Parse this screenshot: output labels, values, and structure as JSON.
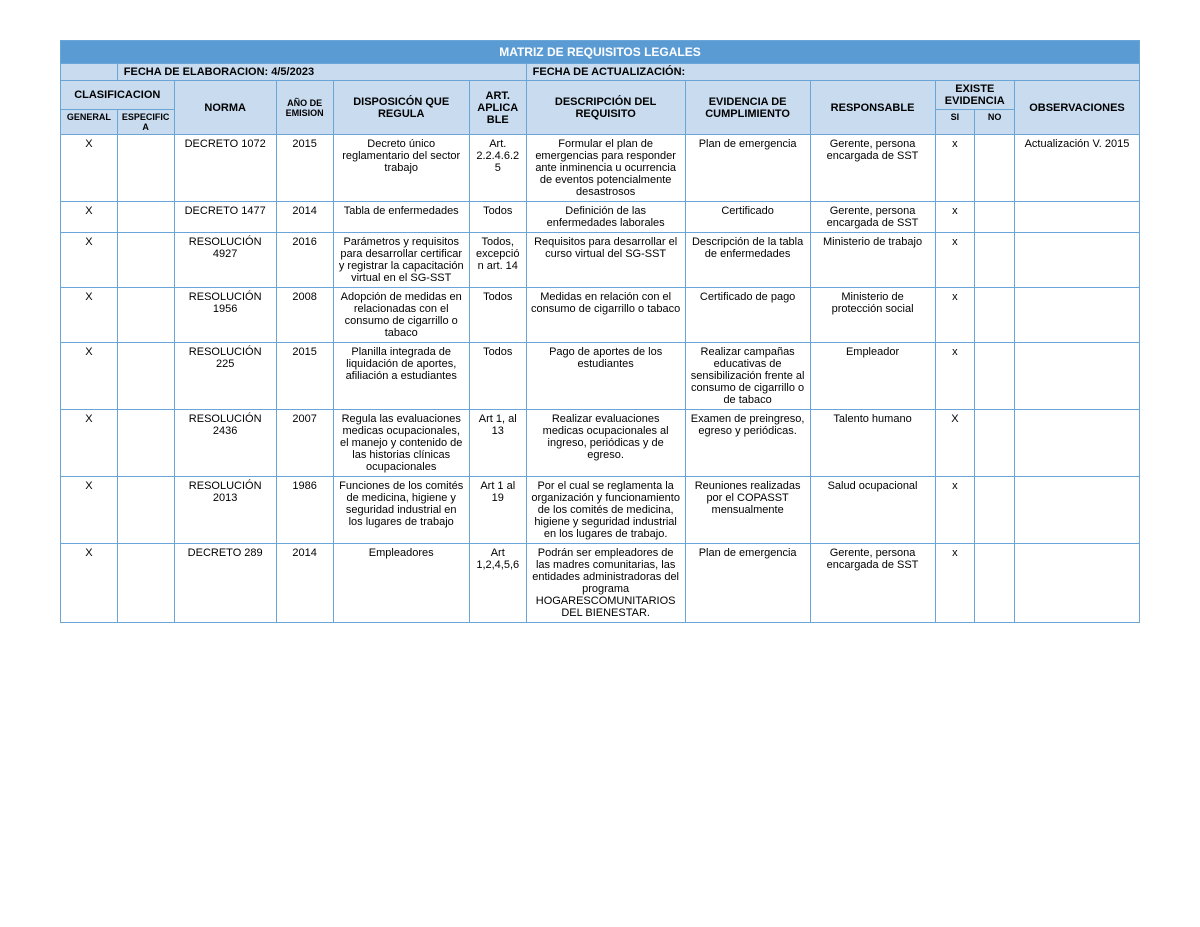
{
  "title": "MATRIZ DE REQUISITOS LEGALES",
  "fecha_elaboracion_label": "FECHA DE ELABORACION: 4/5/2023",
  "fecha_actualizacion_label": "FECHA DE ACTUALIZACIÓN:",
  "headers": {
    "clasificacion": "CLASIFICACION",
    "norma": "NORMA",
    "anio_emision": "AÑO DE EMISION",
    "disposicion": "DISPOSICÓN QUE REGULA",
    "art_aplicable": "ART. APLICABLE",
    "descripcion": "DESCRIPCIÓN DEL REQUISITO",
    "evidencia_cumplimiento": "EVIDENCIA DE CUMPLIMIENTO",
    "responsable": "RESPONSABLE",
    "existe_evidencia": "EXISTE EVIDENCIA",
    "observaciones": "OBSERVACIONES",
    "general": "GENERAL",
    "especifica": "ESPECIFICA",
    "si": "SI",
    "no": "NO"
  },
  "rows": [
    {
      "general": "X",
      "especifica": "",
      "norma": "DECRETO 1072",
      "anio": "2015",
      "disposicion": "Decreto único reglamentario del sector trabajo",
      "art": "Art. 2.2.4.6.25",
      "descripcion": "Formular el plan de emergencias para responder ante inminencia u ocurrencia de eventos potencialmente desastrosos",
      "evidencia": "Plan de emergencia",
      "responsable": "Gerente, persona encargada de SST",
      "si": "x",
      "no": "",
      "obs": "Actualización V. 2015"
    },
    {
      "general": "X",
      "especifica": "",
      "norma": "DECRETO 1477",
      "anio": "2014",
      "disposicion": "Tabla de enfermedades",
      "art": "Todos",
      "descripcion": "Definición de las enfermedades laborales",
      "evidencia": "Certificado",
      "responsable": "Gerente, persona encargada de SST",
      "si": "x",
      "no": "",
      "obs": ""
    },
    {
      "general": "X",
      "especifica": "",
      "norma": "RESOLUCIÓN 4927",
      "anio": "2016",
      "disposicion": "Parámetros y requisitos para desarrollar certificar y registrar la capacitación virtual en el SG-SST",
      "art": "Todos, excepción art. 14",
      "descripcion": "Requisitos para desarrollar el curso virtual del SG-SST",
      "evidencia": "Descripción de la tabla de enfermedades",
      "responsable": "Ministerio de trabajo",
      "si": "x",
      "no": "",
      "obs": ""
    },
    {
      "general": "X",
      "especifica": "",
      "norma": "RESOLUCIÓN 1956",
      "anio": "2008",
      "disposicion": "Adopción de medidas en relacionadas con el consumo de cigarrillo o tabaco",
      "art": "Todos",
      "descripcion": "Medidas en relación con el consumo de cigarrillo o tabaco",
      "evidencia": "Certificado de pago",
      "responsable": "Ministerio de protección social",
      "si": "x",
      "no": "",
      "obs": ""
    },
    {
      "general": "X",
      "especifica": "",
      "norma": "RESOLUCIÓN 225",
      "anio": "2015",
      "disposicion": "Planilla integrada de liquidación de aportes, afiliación a estudiantes",
      "art": "Todos",
      "descripcion": "Pago de aportes de los estudiantes",
      "evidencia": "Realizar campañas educativas de sensibilización frente al consumo de cigarrillo o de tabaco",
      "responsable": "Empleador",
      "si": "x",
      "no": "",
      "obs": ""
    },
    {
      "general": "X",
      "especifica": "",
      "norma": "RESOLUCIÓN 2436",
      "anio": "2007",
      "disposicion": "Regula las evaluaciones medicas ocupacionales, el manejo y contenido de las historias clínicas ocupacionales",
      "art": "Art 1, al 13",
      "descripcion": "Realizar evaluaciones medicas ocupacionales al ingreso, periódicas y de egreso.",
      "evidencia": "Examen de preingreso, egreso y periódicas.",
      "responsable": "Talento humano",
      "si": "X",
      "no": "",
      "obs": ""
    },
    {
      "general": "X",
      "especifica": "",
      "norma": "RESOLUCIÓN 2013",
      "anio": "1986",
      "disposicion": "Funciones de los comités de medicina, higiene y seguridad industrial en los lugares de trabajo",
      "art": "Art 1 al 19",
      "descripcion": "Por el cual se reglamenta la organización y funcionamiento de los comités de medicina, higiene y seguridad industrial en los lugares de trabajo.",
      "evidencia": "Reuniones realizadas por el COPASST mensualmente",
      "responsable": "Salud ocupacional",
      "si": "x",
      "no": "",
      "obs": ""
    },
    {
      "general": "X",
      "especifica": "",
      "norma": "DECRETO 289",
      "anio": "2014",
      "disposicion": "Empleadores",
      "art": "Art 1,2,4,5,6",
      "descripcion": "Podrán ser empleadores de las madres comunitarias, las entidades administradoras del programa HOGARESCOMUNITARIOS DEL BIENESTAR.",
      "evidencia": "Plan de emergencia",
      "responsable": "Gerente, persona encargada de SST",
      "si": "x",
      "no": "",
      "obs": ""
    }
  ],
  "colors": {
    "title_bg": "#5a9bd4",
    "header_bg": "#c8dbef",
    "border": "#6aa5d8"
  }
}
